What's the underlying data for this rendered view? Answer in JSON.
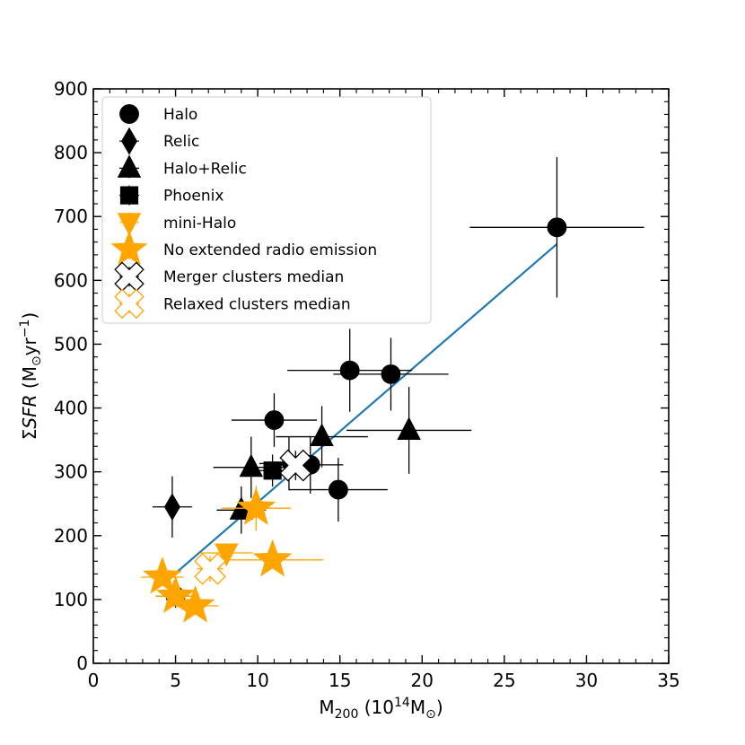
{
  "chart_data": {
    "type": "scatter",
    "title": "",
    "xlabel": "M200 (10^14 Msun)",
    "xlabel_parts": {
      "base": "M",
      "sub": "200",
      "mid": " (10",
      "sup": "14",
      "unit": "M",
      "unit_sub": "⊙",
      "close": ")"
    },
    "ylabel": "ΣSFR (Msun yr^-1)",
    "ylabel_parts": {
      "sigma": "Σ",
      "sfr": "SFR",
      "open": " (M",
      "sun": "⊙",
      "yr": "yr",
      "exp": "−1",
      "close": ")"
    },
    "xlim": [
      0,
      35
    ],
    "ylim": [
      0,
      900
    ],
    "xticks": [
      0,
      5,
      10,
      15,
      20,
      25,
      30,
      35
    ],
    "yticks": [
      0,
      100,
      200,
      300,
      400,
      500,
      600,
      700,
      800,
      900
    ],
    "grid": false,
    "legend_position": "top-left",
    "fit_line": {
      "color": "#1f77b4",
      "x": [
        4.5,
        28.2
      ],
      "y": [
        130,
        657
      ]
    },
    "series": [
      {
        "name": "Halo",
        "marker": "circle",
        "color": "#000000",
        "filled": true,
        "points": [
          {
            "x": 28.2,
            "y": 683,
            "xerr": 5.3,
            "yerr": 110
          },
          {
            "x": 15.6,
            "y": 459,
            "xerr": 3.8,
            "yerr": 65
          },
          {
            "x": 18.1,
            "y": 453,
            "xerr": 3.5,
            "yerr": 57
          },
          {
            "x": 11.0,
            "y": 381,
            "xerr": 2.6,
            "yerr": 42
          },
          {
            "x": 13.2,
            "y": 311,
            "xerr": 2.0,
            "yerr": 45
          },
          {
            "x": 14.9,
            "y": 272,
            "xerr": 3.0,
            "yerr": 50
          },
          {
            "x": 5.0,
            "y": 105,
            "xerr": 1.2,
            "yerr": 18
          }
        ]
      },
      {
        "name": "Relic",
        "marker": "diamond",
        "color": "#000000",
        "filled": true,
        "points": [
          {
            "x": 4.8,
            "y": 245,
            "xerr": 1.2,
            "yerr": 48
          },
          {
            "x": 11.9,
            "y": 313,
            "xerr": 1.8,
            "yerr": 42
          }
        ]
      },
      {
        "name": "Halo+Relic",
        "marker": "triangle-up",
        "color": "#000000",
        "filled": true,
        "points": [
          {
            "x": 19.2,
            "y": 365,
            "xerr": 3.8,
            "yerr": 68
          },
          {
            "x": 13.9,
            "y": 355,
            "xerr": 2.8,
            "yerr": 48
          },
          {
            "x": 9.6,
            "y": 307,
            "xerr": 2.3,
            "yerr": 48
          },
          {
            "x": 9.0,
            "y": 240,
            "xerr": 1.5,
            "yerr": 37
          }
        ]
      },
      {
        "name": "Phoenix",
        "marker": "square",
        "color": "#000000",
        "filled": true,
        "points": [
          {
            "x": 10.9,
            "y": 302,
            "xerr": 1.0,
            "yerr": 25
          }
        ]
      },
      {
        "name": "mini-Halo",
        "marker": "triangle-down",
        "color": "#ffa500",
        "filled": true,
        "points": [
          {
            "x": 8.1,
            "y": 173,
            "xerr": 1.6,
            "yerr": 15
          }
        ]
      },
      {
        "name": "No extended radio emission",
        "marker": "star",
        "color": "#ffa500",
        "filled": true,
        "points": [
          {
            "x": 9.9,
            "y": 243,
            "xerr": 2.1,
            "yerr": 35
          },
          {
            "x": 10.9,
            "y": 162,
            "xerr": 3.1,
            "yerr": 0
          },
          {
            "x": 4.2,
            "y": 135,
            "xerr": 1.3,
            "yerr": 0
          },
          {
            "x": 5.0,
            "y": 105,
            "xerr": 1.2,
            "yerr": 0
          },
          {
            "x": 6.2,
            "y": 90,
            "xerr": 1.4,
            "yerr": 0
          }
        ]
      },
      {
        "name": "Merger clusters median",
        "marker": "x-cross",
        "color": "#000000",
        "filled": false,
        "points": [
          {
            "x": 12.3,
            "y": 310,
            "xerr": 0.8,
            "yerr": 23
          }
        ]
      },
      {
        "name": "Relaxed clusters median",
        "marker": "x-cross",
        "color": "#ffa500",
        "filled": false,
        "points": [
          {
            "x": 7.1,
            "y": 148,
            "xerr": 0.8,
            "yerr": 20
          }
        ]
      }
    ],
    "legend": [
      "Halo",
      "Relic",
      "Halo+Relic",
      "Phoenix",
      "mini-Halo",
      "No extended radio emission",
      "Merger clusters median",
      "Relaxed clusters median"
    ]
  }
}
